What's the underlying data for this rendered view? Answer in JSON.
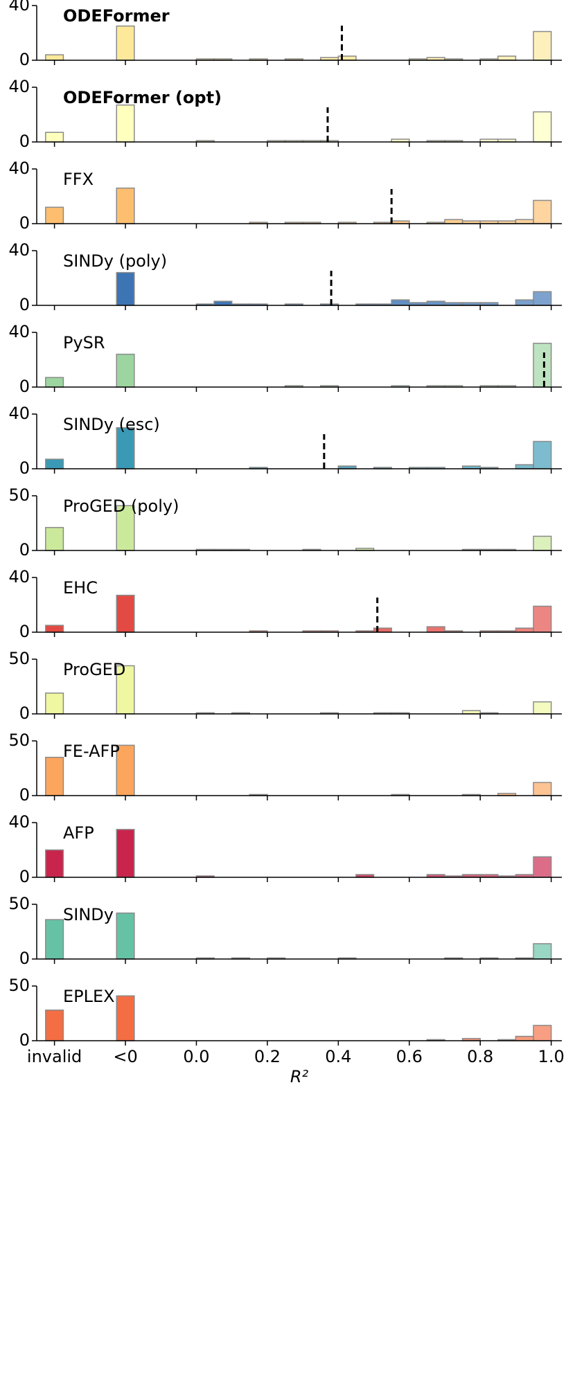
{
  "x_axis": {
    "label": "R²",
    "xlim": [
      -0.45,
      1.03
    ],
    "xticks": [
      {
        "value": -0.4,
        "label": "invalid"
      },
      {
        "value": -0.2,
        "label": "<0"
      },
      {
        "value": 0,
        "label": "0.0"
      },
      0.2,
      0.4,
      0.6,
      0.8,
      {
        "value": 1,
        "label": "1.0"
      }
    ],
    "bins": [
      0,
      0.05,
      0.1,
      0.15,
      0.2,
      0.25,
      0.3,
      0.35,
      0.4,
      0.45,
      0.5,
      0.55,
      0.6,
      0.65,
      0.7,
      0.75,
      0.8,
      0.85,
      0.9,
      0.95,
      1
    ]
  },
  "chart_data": [
    {
      "type": "histogram",
      "title": "ODEFormer",
      "bold": true,
      "color": "#fee99a",
      "ylim": [
        0,
        40
      ],
      "yticks": [
        0,
        40
      ],
      "invalid": 4,
      "negative": 25,
      "counts": [
        1,
        1,
        0,
        1,
        0,
        1,
        0,
        2,
        3,
        0,
        0,
        0,
        1,
        2,
        1,
        0,
        1,
        3,
        0,
        21
      ],
      "median": 0.41
    },
    {
      "type": "histogram",
      "title": "ODEFormer (opt)",
      "bold": true,
      "color": "#ffffbe",
      "ylim": [
        0,
        40
      ],
      "yticks": [
        0,
        40
      ],
      "invalid": 7,
      "negative": 27,
      "counts": [
        1,
        0,
        0,
        0,
        1,
        1,
        1,
        1,
        0,
        0,
        0,
        2,
        0,
        1,
        1,
        0,
        2,
        2,
        0,
        22
      ],
      "median": 0.37
    },
    {
      "type": "histogram",
      "title": "FFX",
      "bold": false,
      "color": "#fdbf6f",
      "ylim": [
        0,
        40
      ],
      "yticks": [
        0,
        40
      ],
      "invalid": 12,
      "negative": 26,
      "counts": [
        0,
        0,
        0,
        1,
        0,
        1,
        1,
        0,
        1,
        0,
        1,
        2,
        0,
        1,
        3,
        2,
        2,
        2,
        3,
        17
      ],
      "median": 0.55
    },
    {
      "type": "histogram",
      "title": "SINDy (poly)",
      "bold": false,
      "color": "#3c74b4",
      "ylim": [
        0,
        40
      ],
      "yticks": [
        0,
        40
      ],
      "invalid": 0,
      "negative": 24,
      "counts": [
        1,
        3,
        1,
        1,
        0,
        1,
        0,
        1,
        0,
        1,
        1,
        4,
        2,
        3,
        2,
        2,
        2,
        0,
        4,
        10
      ],
      "median": 0.38
    },
    {
      "type": "histogram",
      "title": "PySR",
      "bold": false,
      "color": "#9dd5a0",
      "ylim": [
        0,
        40
      ],
      "yticks": [
        0,
        40
      ],
      "invalid": 7,
      "negative": 24,
      "counts": [
        0,
        0,
        0,
        0,
        0,
        1,
        0,
        1,
        0,
        0,
        0,
        1,
        0,
        1,
        1,
        0,
        1,
        1,
        0,
        32
      ],
      "median": 0.98
    },
    {
      "type": "histogram",
      "title": "SINDy (esc)",
      "bold": false,
      "color": "#3a9ab5",
      "ylim": [
        0,
        40
      ],
      "yticks": [
        0,
        40
      ],
      "invalid": 7,
      "negative": 30,
      "counts": [
        0,
        0,
        0,
        1,
        0,
        0,
        0,
        0,
        2,
        0,
        1,
        0,
        1,
        1,
        0,
        2,
        1,
        0,
        3,
        20
      ],
      "median": 0.36
    },
    {
      "type": "histogram",
      "title": "ProGED (poly)",
      "bold": false,
      "color": "#cbe99b",
      "ylim": [
        0,
        50
      ],
      "yticks": [
        0,
        50
      ],
      "invalid": 21,
      "negative": 41,
      "counts": [
        1,
        1,
        1,
        0,
        0,
        0,
        1,
        0,
        0,
        2,
        0,
        0,
        0,
        0,
        0,
        1,
        1,
        1,
        0,
        13
      ]
    },
    {
      "type": "histogram",
      "title": "EHC",
      "bold": false,
      "color": "#e34a43",
      "ylim": [
        0,
        40
      ],
      "yticks": [
        0,
        40
      ],
      "invalid": 5,
      "negative": 27,
      "counts": [
        0,
        0,
        0,
        1,
        0,
        0,
        1,
        1,
        0,
        1,
        3,
        0,
        0,
        4,
        1,
        0,
        1,
        1,
        3,
        19
      ],
      "median": 0.51
    },
    {
      "type": "histogram",
      "title": "ProGED",
      "bold": false,
      "color": "#eff7a0",
      "ylim": [
        0,
        50
      ],
      "yticks": [
        0,
        50
      ],
      "invalid": 19,
      "negative": 44,
      "counts": [
        1,
        0,
        1,
        0,
        0,
        0,
        0,
        1,
        0,
        0,
        1,
        1,
        0,
        0,
        0,
        3,
        1,
        0,
        0,
        11
      ]
    },
    {
      "type": "histogram",
      "title": "FE-AFP",
      "bold": false,
      "color": "#fca55d",
      "ylim": [
        0,
        50
      ],
      "yticks": [
        0,
        50
      ],
      "invalid": 35,
      "negative": 46,
      "counts": [
        0,
        0,
        0,
        1,
        0,
        0,
        0,
        0,
        0,
        0,
        0,
        1,
        0,
        0,
        0,
        1,
        0,
        2,
        0,
        12
      ]
    },
    {
      "type": "histogram",
      "title": "AFP",
      "bold": false,
      "color": "#c9244c",
      "ylim": [
        0,
        40
      ],
      "yticks": [
        0,
        40
      ],
      "invalid": 20,
      "negative": 35,
      "counts": [
        1,
        0,
        0,
        0,
        0,
        0,
        0,
        0,
        0,
        2,
        0,
        0,
        0,
        2,
        1,
        2,
        2,
        1,
        2,
        15
      ]
    },
    {
      "type": "histogram",
      "title": "SINDy",
      "bold": false,
      "color": "#66c2a5",
      "ylim": [
        0,
        50
      ],
      "yticks": [
        0,
        50
      ],
      "invalid": 36,
      "negative": 42,
      "counts": [
        1,
        0,
        1,
        0,
        1,
        0,
        0,
        0,
        1,
        0,
        0,
        0,
        0,
        0,
        1,
        0,
        1,
        0,
        1,
        14
      ]
    },
    {
      "type": "histogram",
      "title": "EPLEX",
      "bold": false,
      "color": "#f46d43",
      "ylim": [
        0,
        50
      ],
      "yticks": [
        0,
        50
      ],
      "invalid": 28,
      "negative": 41,
      "counts": [
        0,
        0,
        0,
        0,
        0,
        0,
        0,
        0,
        0,
        0,
        0,
        0,
        0,
        1,
        0,
        2,
        0,
        1,
        4,
        14
      ]
    }
  ]
}
